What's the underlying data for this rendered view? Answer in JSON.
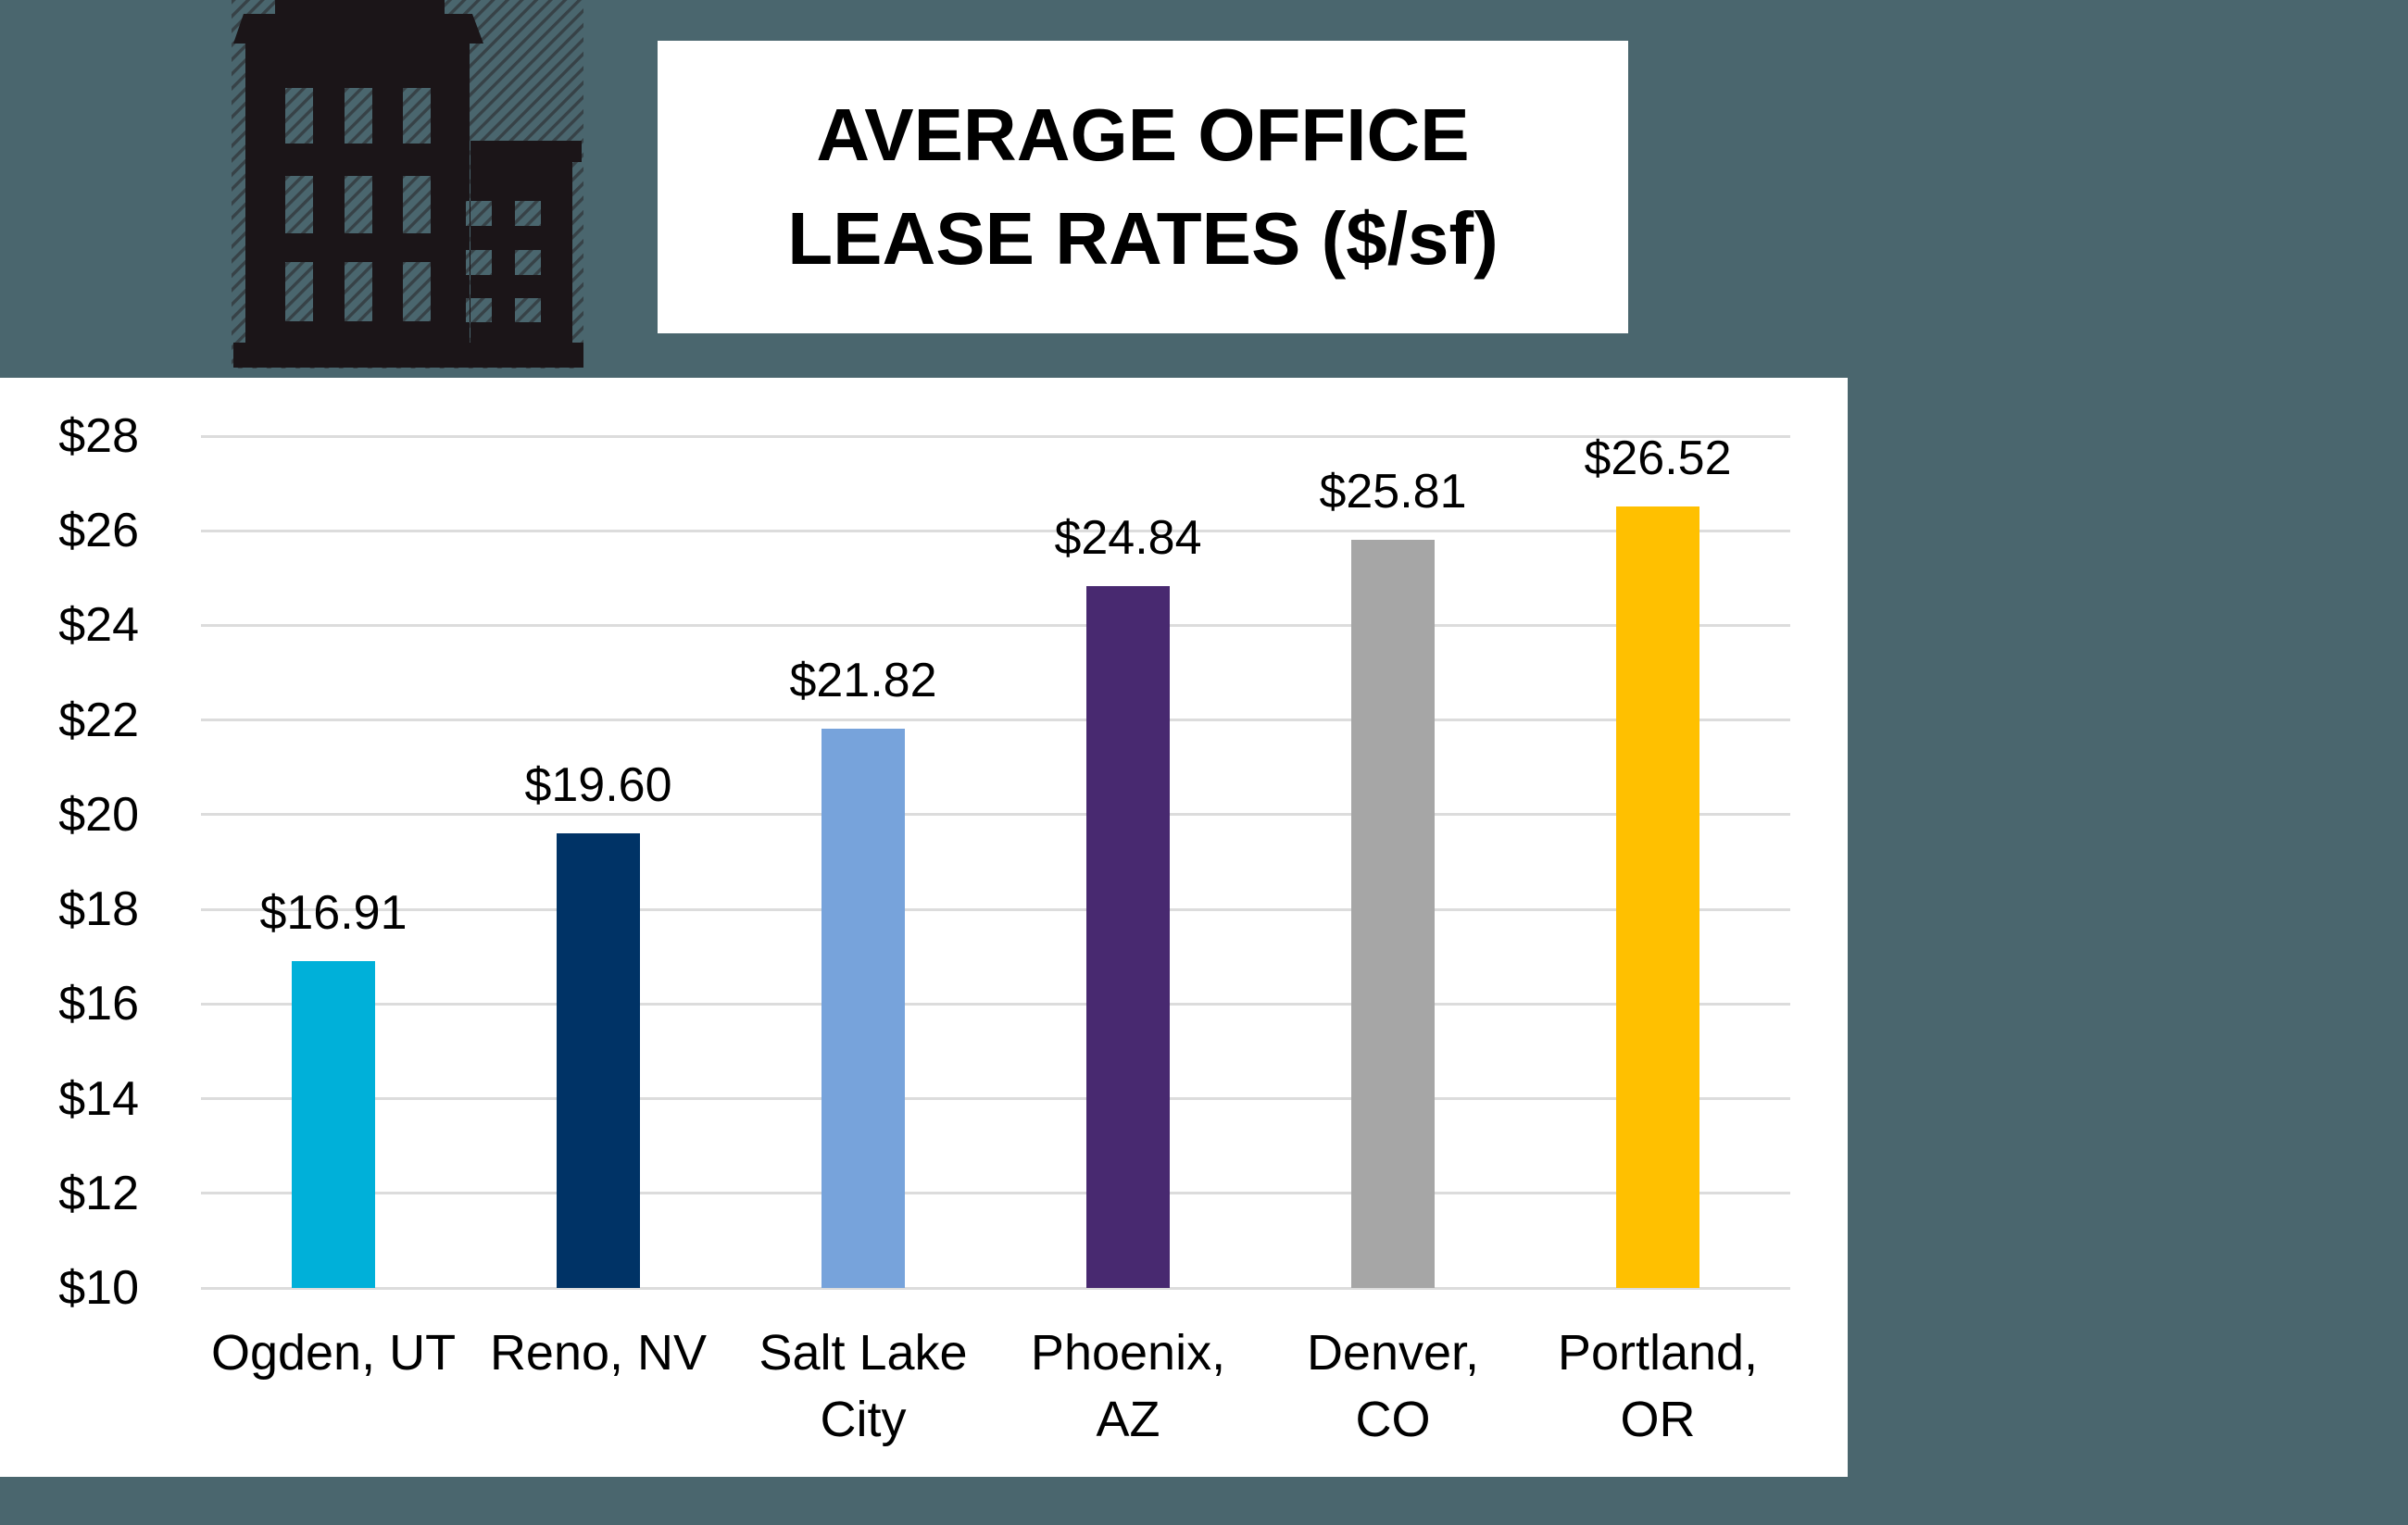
{
  "page": {
    "background_color": "#4a666e",
    "panel_color": "#ffffff"
  },
  "title": {
    "line1": "AVERAGE OFFICE",
    "line2": "LEASE RATES ($/sf)"
  },
  "icon": {
    "name": "office-building-icon",
    "color": "#1b1518",
    "hatch_color": "#241d20"
  },
  "chart_data": {
    "type": "bar",
    "title": "AVERAGE OFFICE LEASE RATES ($/sf)",
    "categories": [
      "Ogden, UT",
      "Reno, NV",
      "Salt Lake City",
      "Phoenix, AZ",
      "Denver, CO",
      "Portland, OR"
    ],
    "category_lines": [
      [
        "Ogden, UT"
      ],
      [
        "Reno, NV"
      ],
      [
        "Salt Lake",
        "City"
      ],
      [
        "Phoenix,",
        "AZ"
      ],
      [
        "Denver,",
        "CO"
      ],
      [
        "Portland,",
        "OR"
      ]
    ],
    "values": [
      16.91,
      19.6,
      21.82,
      24.84,
      25.81,
      26.52
    ],
    "value_labels": [
      "$16.91",
      "$19.60",
      "$21.82",
      "$24.84",
      "$25.81",
      "$26.52"
    ],
    "bar_colors": [
      "#00b0d9",
      "#003366",
      "#77a3db",
      "#482970",
      "#a6a6a6",
      "#ffc000"
    ],
    "xlabel": "",
    "ylabel": "",
    "ylim": [
      10,
      28
    ],
    "ytick_step": 2,
    "ytick_labels": [
      "$10",
      "$12",
      "$14",
      "$16",
      "$18",
      "$20",
      "$22",
      "$24",
      "$26",
      "$28"
    ],
    "grid": true,
    "gridline_color": "#dcdcdc",
    "legend": "none"
  }
}
